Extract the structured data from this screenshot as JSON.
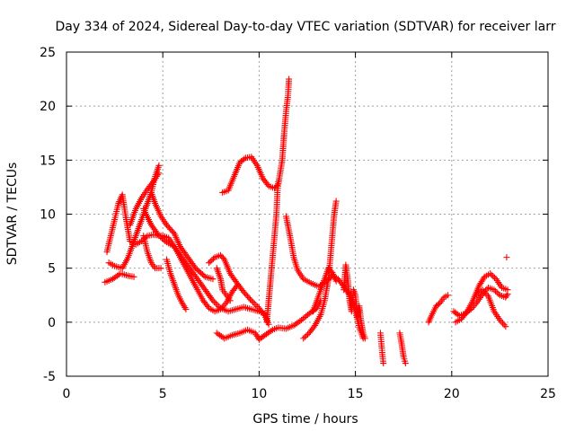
{
  "chart_data": {
    "type": "scatter",
    "title": "Day 334 of 2024, Sidereal Day-to-day VTEC variation (SDTVAR) for receiver larr",
    "xlabel": "GPS time / hours",
    "ylabel": "SDTVAR / TECUs",
    "xlim": [
      0,
      25
    ],
    "ylim": [
      -5,
      25
    ],
    "xticks": [
      "0",
      "5",
      "10",
      "15",
      "20",
      "25"
    ],
    "yticks": [
      "-5",
      "0",
      "5",
      "10",
      "15",
      "20",
      "25"
    ],
    "grid": true,
    "marker": "plus",
    "color": "#ff0000",
    "series": [
      {
        "points": [
          [
            2.0,
            3.7
          ],
          [
            2.4,
            4.0
          ],
          [
            2.8,
            4.5
          ],
          [
            3.2,
            4.3
          ],
          [
            3.5,
            4.2
          ]
        ]
      },
      {
        "points": [
          [
            2.1,
            6.5
          ],
          [
            2.3,
            8.0
          ],
          [
            2.5,
            9.5
          ],
          [
            2.7,
            11.0
          ],
          [
            2.9,
            11.8
          ],
          [
            3.1,
            9.5
          ],
          [
            3.3,
            7.5
          ],
          [
            3.6,
            7.2
          ],
          [
            3.9,
            7.5
          ],
          [
            4.2,
            8.0
          ],
          [
            4.5,
            8.1
          ],
          [
            5.0,
            8.0
          ],
          [
            5.3,
            7.8
          ],
          [
            5.6,
            7.0
          ],
          [
            5.9,
            6.0
          ],
          [
            6.2,
            5.0
          ],
          [
            6.5,
            4.0
          ],
          [
            6.8,
            3.0
          ],
          [
            7.1,
            2.0
          ],
          [
            7.4,
            1.3
          ],
          [
            7.7,
            1.0
          ],
          [
            8.0,
            1.2
          ],
          [
            8.3,
            1.8
          ],
          [
            8.6,
            2.8
          ],
          [
            8.9,
            3.5
          ]
        ]
      },
      {
        "points": [
          [
            2.2,
            5.5
          ],
          [
            2.5,
            5.2
          ],
          [
            2.9,
            5.0
          ],
          [
            3.2,
            6.0
          ],
          [
            3.5,
            7.5
          ],
          [
            3.8,
            9.0
          ],
          [
            4.1,
            10.5
          ],
          [
            4.4,
            12.0
          ],
          [
            4.6,
            13.5
          ],
          [
            4.8,
            14.5
          ]
        ]
      },
      {
        "points": [
          [
            3.3,
            9.0
          ],
          [
            3.6,
            10.5
          ],
          [
            3.9,
            11.5
          ],
          [
            4.2,
            12.3
          ],
          [
            4.5,
            13.0
          ],
          [
            4.8,
            13.8
          ]
        ]
      },
      {
        "points": [
          [
            4.0,
            10.5
          ],
          [
            4.4,
            9.0
          ],
          [
            4.8,
            8.0
          ],
          [
            5.2,
            7.4
          ],
          [
            5.6,
            7.0
          ],
          [
            6.0,
            6.0
          ],
          [
            6.4,
            5.0
          ],
          [
            6.8,
            4.0
          ],
          [
            7.2,
            3.0
          ],
          [
            7.6,
            2.0
          ],
          [
            8.0,
            1.3
          ],
          [
            8.4,
            1.0
          ],
          [
            8.8,
            1.2
          ],
          [
            9.2,
            1.4
          ],
          [
            9.6,
            1.2
          ],
          [
            10.0,
            1.0
          ],
          [
            10.4,
            0.7
          ]
        ]
      },
      {
        "points": [
          [
            4.0,
            8.0
          ],
          [
            4.2,
            6.5
          ],
          [
            4.4,
            5.5
          ],
          [
            4.6,
            5.0
          ],
          [
            4.9,
            5.0
          ]
        ]
      },
      {
        "points": [
          [
            4.4,
            12.0
          ],
          [
            4.6,
            11.0
          ],
          [
            4.9,
            9.8
          ],
          [
            5.2,
            9.0
          ],
          [
            5.6,
            8.2
          ],
          [
            5.9,
            7.0
          ],
          [
            6.3,
            6.0
          ],
          [
            6.7,
            5.0
          ],
          [
            7.2,
            4.2
          ],
          [
            7.6,
            4.0
          ]
        ]
      },
      {
        "points": [
          [
            5.2,
            5.8
          ],
          [
            5.4,
            4.5
          ],
          [
            5.6,
            3.5
          ],
          [
            5.8,
            2.5
          ],
          [
            6.0,
            1.8
          ],
          [
            6.2,
            1.2
          ]
        ]
      },
      {
        "points": [
          [
            7.4,
            5.5
          ],
          [
            7.7,
            6.0
          ],
          [
            8.0,
            6.2
          ],
          [
            8.2,
            5.8
          ],
          [
            8.5,
            4.5
          ],
          [
            8.9,
            3.5
          ],
          [
            9.2,
            2.8
          ],
          [
            9.6,
            2.0
          ],
          [
            10.0,
            1.3
          ],
          [
            10.3,
            0.6
          ],
          [
            10.5,
            -0.2
          ]
        ]
      },
      {
        "points": [
          [
            7.8,
            5.0
          ],
          [
            8.0,
            4.0
          ],
          [
            8.1,
            3.0
          ],
          [
            8.3,
            2.5
          ],
          [
            8.5,
            2.0
          ]
        ]
      },
      {
        "points": [
          [
            7.8,
            -1.0
          ],
          [
            8.2,
            -1.5
          ],
          [
            8.6,
            -1.2
          ],
          [
            9.0,
            -1.0
          ],
          [
            9.4,
            -0.7
          ],
          [
            9.8,
            -1.0
          ],
          [
            10.0,
            -1.6
          ],
          [
            10.3,
            -1.2
          ],
          [
            10.7,
            -0.7
          ],
          [
            11.0,
            -0.5
          ],
          [
            11.4,
            -0.6
          ],
          [
            11.8,
            -0.3
          ],
          [
            12.2,
            0.2
          ],
          [
            12.6,
            0.8
          ],
          [
            13.0,
            1.3
          ],
          [
            13.2,
            2.0
          ]
        ]
      },
      {
        "points": [
          [
            8.1,
            12.0
          ],
          [
            8.4,
            12.2
          ],
          [
            8.7,
            13.5
          ],
          [
            9.0,
            14.8
          ],
          [
            9.3,
            15.2
          ],
          [
            9.6,
            15.3
          ],
          [
            9.9,
            14.5
          ],
          [
            10.2,
            13.3
          ],
          [
            10.5,
            12.6
          ],
          [
            10.8,
            12.4
          ],
          [
            11.0,
            12.8
          ],
          [
            11.2,
            15.0
          ],
          [
            11.3,
            17.5
          ],
          [
            11.4,
            19.5
          ],
          [
            11.5,
            21.0
          ],
          [
            11.55,
            22.5
          ]
        ]
      },
      {
        "points": [
          [
            10.4,
            0.0
          ],
          [
            10.5,
            2.0
          ],
          [
            10.6,
            4.0
          ],
          [
            10.7,
            6.0
          ],
          [
            10.8,
            8.0
          ],
          [
            10.9,
            10.0
          ],
          [
            10.95,
            12.0
          ],
          [
            11.0,
            13.0
          ]
        ]
      },
      {
        "points": [
          [
            11.4,
            9.8
          ],
          [
            11.6,
            8.0
          ],
          [
            11.8,
            6.0
          ],
          [
            12.0,
            4.8
          ],
          [
            12.3,
            4.0
          ],
          [
            12.7,
            3.6
          ],
          [
            13.1,
            3.3
          ],
          [
            13.5,
            3.8
          ],
          [
            13.8,
            4.3
          ],
          [
            14.1,
            4.0
          ],
          [
            14.4,
            3.3
          ],
          [
            14.7,
            2.5
          ],
          [
            15.0,
            1.0
          ],
          [
            15.2,
            -0.5
          ],
          [
            15.4,
            -1.5
          ]
        ]
      },
      {
        "points": [
          [
            12.3,
            -1.5
          ],
          [
            12.6,
            -1.0
          ],
          [
            12.9,
            -0.3
          ],
          [
            13.2,
            0.7
          ],
          [
            13.4,
            2.0
          ],
          [
            13.6,
            4.0
          ],
          [
            13.7,
            6.0
          ],
          [
            13.8,
            8.0
          ],
          [
            13.9,
            10.0
          ],
          [
            14.0,
            11.2
          ]
        ]
      },
      {
        "points": [
          [
            12.8,
            1.0
          ],
          [
            13.0,
            2.0
          ],
          [
            13.2,
            3.0
          ],
          [
            13.4,
            4.0
          ],
          [
            13.6,
            5.0
          ],
          [
            13.8,
            4.6
          ],
          [
            14.0,
            3.8
          ]
        ]
      },
      {
        "points": [
          [
            14.4,
            3.0
          ],
          [
            14.5,
            5.3
          ],
          [
            14.6,
            4.0
          ],
          [
            14.7,
            2.0
          ],
          [
            14.8,
            1.0
          ],
          [
            14.9,
            3.0
          ],
          [
            15.0,
            2.5
          ],
          [
            15.1,
            0.5
          ],
          [
            15.2,
            1.5
          ],
          [
            15.3,
            0.0
          ],
          [
            15.4,
            -1.0
          ],
          [
            15.5,
            -1.5
          ]
        ]
      },
      {
        "points": [
          [
            16.3,
            -1.0
          ],
          [
            16.35,
            -2.0
          ],
          [
            16.4,
            -3.0
          ],
          [
            16.45,
            -3.8
          ]
        ]
      },
      {
        "points": [
          [
            17.3,
            -1.0
          ],
          [
            17.4,
            -2.0
          ],
          [
            17.5,
            -3.2
          ],
          [
            17.6,
            -3.8
          ]
        ]
      },
      {
        "points": [
          [
            18.8,
            0.0
          ],
          [
            19.0,
            0.8
          ],
          [
            19.2,
            1.5
          ],
          [
            19.4,
            1.8
          ],
          [
            19.6,
            2.3
          ],
          [
            19.8,
            2.5
          ]
        ]
      },
      {
        "points": [
          [
            20.1,
            1.0
          ],
          [
            20.4,
            0.6
          ],
          [
            20.7,
            0.8
          ],
          [
            21.0,
            1.2
          ],
          [
            21.3,
            1.8
          ],
          [
            21.6,
            2.6
          ],
          [
            21.9,
            3.2
          ],
          [
            22.2,
            3.0
          ],
          [
            22.5,
            2.5
          ],
          [
            22.8,
            2.3
          ],
          [
            22.9,
            2.6
          ]
        ]
      },
      {
        "points": [
          [
            20.2,
            0.0
          ],
          [
            20.5,
            0.3
          ],
          [
            20.8,
            1.0
          ],
          [
            21.1,
            2.0
          ],
          [
            21.4,
            3.3
          ],
          [
            21.7,
            4.2
          ],
          [
            22.0,
            4.5
          ],
          [
            22.3,
            4.0
          ],
          [
            22.6,
            3.2
          ],
          [
            22.9,
            3.0
          ]
        ]
      },
      {
        "points": [
          [
            21.3,
            2.5
          ],
          [
            21.6,
            3.0
          ],
          [
            21.9,
            2.4
          ],
          [
            22.2,
            1.0
          ],
          [
            22.5,
            0.2
          ],
          [
            22.8,
            -0.4
          ]
        ]
      },
      {
        "points": [
          [
            22.85,
            6.0
          ]
        ]
      }
    ]
  }
}
